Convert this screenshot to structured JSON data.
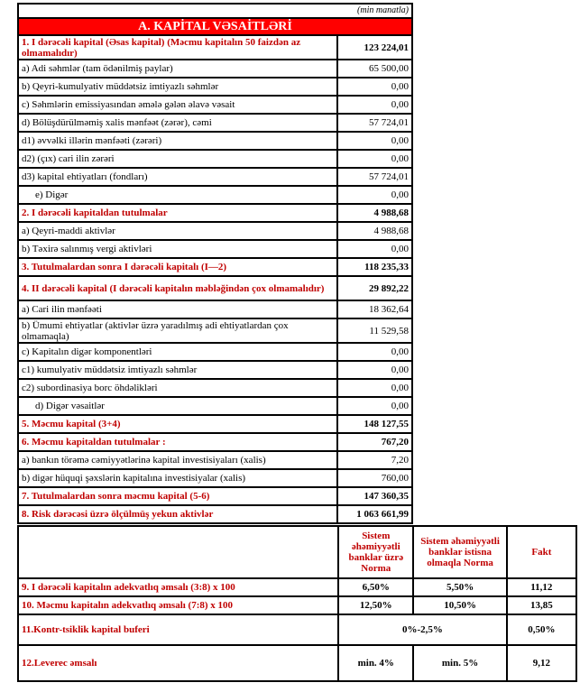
{
  "unit": "(min manatla)",
  "title": "A. KAPİTAL VƏSAİTLƏRİ",
  "rows": [
    {
      "label": "1. I dərəcəli kapital (Əsas kapital) (Məcmu kapitalın 50 faizdən  az olmamalıdır)",
      "value": "123 224,01",
      "type": "head"
    },
    {
      "label": "a) Adi səhmlər (tam ödənilmiş paylar)",
      "value": "65 500,00"
    },
    {
      "label": "b) Qeyri-kumulyativ müddətsiz imtiyazlı səhmlər",
      "value": "0,00"
    },
    {
      "label": "c) Səhmlərin emissiyasından əmələ gələn  əlavə vəsait",
      "value": "0,00"
    },
    {
      "label": "d)   Bölüşdürülməmiş xalis mənfəət (zərər), cəmi",
      "value": "57 724,01"
    },
    {
      "label": "d1) əvvəlki illərin mənfəəti (zərəri)",
      "value": "0,00"
    },
    {
      "label": "d2) (çıx) cari ilin zərəri",
      "value": "0,00"
    },
    {
      "label": "d3) kapital ehtiyatları (fondları)",
      "value": "57 724,01"
    },
    {
      "label": "e) Digər",
      "value": "0,00",
      "type": "indent"
    },
    {
      "label": "2. I dərəcəli kapitaldan  tutulmalar",
      "value": "4 988,68",
      "type": "head"
    },
    {
      "label": "a) Qeyri-maddi aktivlər",
      "value": "4 988,68"
    },
    {
      "label": "b) Təxirə salınmış vergi aktivləri",
      "value": "0,00"
    },
    {
      "label": "3. Tutulmalardan  sonra I dərəcəli kapitalı (I—2)",
      "value": "118 235,33",
      "type": "head"
    },
    {
      "label": "4. II dərəcəli  kapital (I dərəcəli  kapitalın  məbləğindən çox olmamalıdır)",
      "value": "29 892,22",
      "type": "head"
    },
    {
      "label": "a) Cari ilin mənfəəti",
      "value": "18 362,64"
    },
    {
      "label": "b) Ümumi ehtiyatlar (aktivlər üzrə yaradılmış adi ehtiyatlardan çox olmamaqla)",
      "value": "11 529,58"
    },
    {
      "label": "c)  Kapitalın digər komponentləri",
      "value": "0,00"
    },
    {
      "label": "c1) kumulyativ müddətsiz imtiyazlı səhmlər",
      "value": "0,00"
    },
    {
      "label": "c2) subordinasiya borc öhdəlikləri",
      "value": "0,00"
    },
    {
      "label": "d) Digər vəsaitlər",
      "value": "0,00",
      "type": "indent"
    },
    {
      "label": "5. Məcmu kapital (3+4)",
      "value": "148 127,55",
      "type": "head"
    },
    {
      "label": "6. Məcmu kapitaldan tutulmalar :",
      "value": "767,20",
      "type": "head"
    },
    {
      "label": "a)   bankın törəmə cəmiyyətlərinə kapital investisiyaları (xalis)",
      "value": "7,20"
    },
    {
      "label": "b)   digər hüquqi şəxslərin kapitalına investisiyalar (xalis)",
      "value": "760,00"
    },
    {
      "label": "7. Tutulmalardan  sonra məcmu kapital (5-6)",
      "value": "147 360,35",
      "type": "head"
    },
    {
      "label": "8. Risk dərəcəsi üzrə ölçülmüş  yekun aktivlər",
      "value": "1 063 661,99",
      "type": "head"
    }
  ],
  "ratios": {
    "headers": [
      "Sistem əhəmiyyətli banklar üzrə Norma",
      "Sistem əhəmiyyətli banklar istisna olmaqla Norma",
      "Fakt"
    ],
    "rows": [
      {
        "label": "9.  I dərəcəli  kapitalın  adekvatlıq əmsalı (3:8) x 100",
        "norm_sys": "6,50%",
        "norm_other": "5,50%",
        "fact": "11,12"
      },
      {
        "label": "10. Məcmu kapitalın  adekvatlıq  əmsalı (7:8) x 100",
        "norm_sys": "12,50%",
        "norm_other": "10,50%",
        "fact": "13,85"
      },
      {
        "label": "11.Kontr-tsiklik kapital buferi",
        "norm_merged": "0%-2,5%",
        "fact": "0,50%"
      },
      {
        "label": "12.Leverec əmsalı",
        "norm_sys": "min. 4%",
        "norm_other": "min. 5%",
        "fact": "9,12"
      }
    ]
  },
  "colors": {
    "title_bg": "#ff0000",
    "heading_text": "#c00000"
  }
}
